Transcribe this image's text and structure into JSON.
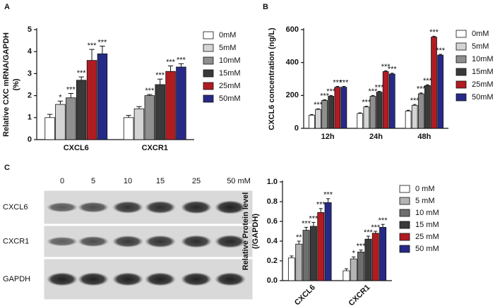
{
  "chart_data": [
    {
      "type": "bar",
      "panel": "A",
      "ylabel": [
        "Relative CXC mRNA/GAPDH",
        "(%)"
      ],
      "categories": [
        "CXCL6",
        "CXCR1"
      ],
      "ylim": [
        0,
        5
      ],
      "yticks": [
        0,
        1,
        2,
        3,
        4,
        5
      ],
      "series": [
        {
          "name": "0mM",
          "color": "#ffffff",
          "values": [
            1.0,
            1.0
          ],
          "errors": [
            0.15,
            0.1
          ],
          "labels": [
            null,
            null
          ]
        },
        {
          "name": "5mM",
          "color": "#d4d4d4",
          "values": [
            1.6,
            1.4
          ],
          "errors": [
            0.15,
            0.1
          ],
          "labels": [
            "*",
            null
          ]
        },
        {
          "name": "10mM",
          "color": "#8f8f8f",
          "values": [
            1.9,
            2.0
          ],
          "errors": [
            0.2,
            0.05
          ],
          "labels": [
            "***",
            "***"
          ]
        },
        {
          "name": "15mM",
          "color": "#3a3a3a",
          "values": [
            2.7,
            2.5
          ],
          "errors": [
            0.15,
            0.25
          ],
          "labels": [
            "***",
            "***"
          ]
        },
        {
          "name": "25mM",
          "color": "#b01c22",
          "values": [
            3.6,
            3.1
          ],
          "errors": [
            0.5,
            0.25
          ],
          "labels": [
            "***",
            "***"
          ]
        },
        {
          "name": "50mM",
          "color": "#262a86",
          "values": [
            3.9,
            3.3
          ],
          "errors": [
            0.35,
            0.15
          ],
          "labels": [
            "***",
            "***"
          ]
        }
      ]
    },
    {
      "type": "bar",
      "panel": "B",
      "ylabel": [
        "CXCL6 concentration (ng/L)"
      ],
      "categories": [
        "12h",
        "24h",
        "48h"
      ],
      "ylim": [
        0,
        600
      ],
      "yticks": [
        0,
        200,
        400,
        600
      ],
      "series": [
        {
          "name": "0mM",
          "color": "#ffffff",
          "values": [
            80,
            90,
            105
          ],
          "errors": [
            4,
            4,
            5
          ],
          "labels": [
            null,
            null,
            null
          ]
        },
        {
          "name": "5mM",
          "color": "#d4d4d4",
          "values": [
            115,
            130,
            140
          ],
          "errors": [
            4,
            4,
            5
          ],
          "labels": [
            "***",
            "***",
            "***"
          ]
        },
        {
          "name": "10mM",
          "color": "#8f8f8f",
          "values": [
            170,
            195,
            210
          ],
          "errors": [
            4,
            5,
            5
          ],
          "labels": [
            "***",
            "***",
            "***"
          ]
        },
        {
          "name": "15mM",
          "color": "#3a3a3a",
          "values": [
            195,
            220,
            260
          ],
          "errors": [
            5,
            5,
            5
          ],
          "labels": [
            "***",
            "***",
            "***"
          ]
        },
        {
          "name": "25mM",
          "color": "#b01c22",
          "values": [
            250,
            345,
            555
          ],
          "errors": [
            5,
            5,
            5
          ],
          "labels": [
            "***",
            "***",
            "***"
          ]
        },
        {
          "name": "50mM",
          "color": "#262a86",
          "values": [
            250,
            330,
            445
          ],
          "errors": [
            5,
            5,
            5
          ],
          "labels": [
            "***",
            "***",
            "***"
          ]
        }
      ]
    },
    {
      "type": "bar",
      "ylabel": [
        "Relative Protein level",
        "(/GAPDH)"
      ],
      "categories": [
        "CXCL6",
        "CXCR1"
      ],
      "ylim": [
        0,
        1
      ],
      "yticks": [
        {
          "value": 0,
          "label": "0.0"
        },
        0.2,
        0.4,
        0.6,
        0.8,
        {
          "value": 1,
          "label": "1.0"
        }
      ],
      "series": [
        {
          "name": "0 mM",
          "color": "#ffffff",
          "values": [
            0.23,
            0.1
          ],
          "errors": [
            0.02,
            0.02
          ],
          "labels": [
            null,
            null
          ]
        },
        {
          "name": "5 mM",
          "color": "#b4b4b4",
          "values": [
            0.37,
            0.22
          ],
          "errors": [
            0.03,
            0.02
          ],
          "labels": [
            "**",
            "*"
          ]
        },
        {
          "name": "10 mM",
          "color": "#6e6e6e",
          "values": [
            0.51,
            0.29
          ],
          "errors": [
            0.03,
            0.02
          ],
          "labels": [
            "***",
            "***"
          ]
        },
        {
          "name": "15 mM",
          "color": "#3a3a3a",
          "values": [
            0.55,
            0.42
          ],
          "errors": [
            0.04,
            0.03
          ],
          "labels": [
            "***",
            "***"
          ]
        },
        {
          "name": "25 mM",
          "color": "#b01c22",
          "values": [
            0.69,
            0.48
          ],
          "errors": [
            0.04,
            0.02
          ],
          "labels": [
            "***",
            "***"
          ]
        },
        {
          "name": "50 mM",
          "color": "#262a86",
          "values": [
            0.79,
            0.54
          ],
          "errors": [
            0.04,
            0.03
          ],
          "labels": [
            "***",
            "***"
          ]
        }
      ]
    }
  ],
  "blot": {
    "panel": "C",
    "lanes": [
      "0",
      "5",
      "10",
      "15",
      "25",
      "50 mM"
    ],
    "rows": [
      "CXCL6",
      "CXCR1",
      "GAPDH"
    ]
  }
}
